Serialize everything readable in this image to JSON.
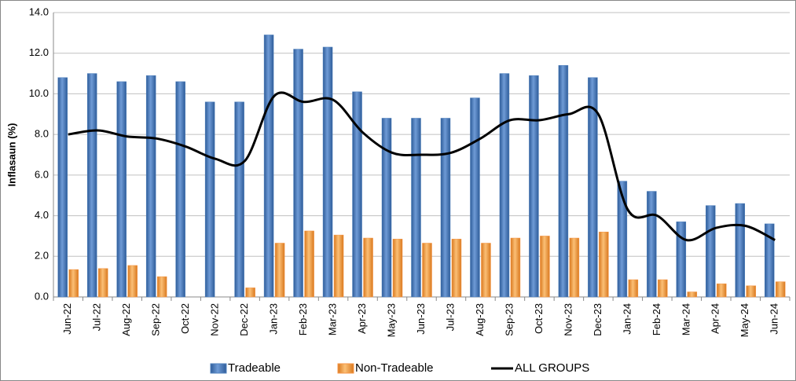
{
  "chart_data": {
    "type": "bar-line",
    "y_label": "Inflasaun (%)",
    "categories": [
      "Jun-22",
      "Jul-22",
      "Aug-22",
      "Sep-22",
      "Oct-22",
      "Nov-22",
      "Dec-22",
      "Jan-23",
      "Feb-23",
      "Mar-23",
      "Apr-23",
      "May-23",
      "Jun-23",
      "Jul-23",
      "Aug-23",
      "Sep-23",
      "Oct-23",
      "Nov-23",
      "Dec-23",
      "Jan-24",
      "Feb-24",
      "Mar-24",
      "Apr-24",
      "May-24",
      "Jun-24"
    ],
    "series": [
      {
        "name": "Tradeable",
        "type": "bar",
        "color": "#4f81bd",
        "values": [
          10.8,
          11.0,
          10.6,
          10.9,
          10.6,
          9.6,
          9.6,
          12.9,
          12.2,
          12.3,
          10.1,
          8.8,
          8.8,
          8.8,
          9.8,
          11.0,
          10.9,
          11.4,
          10.8,
          5.7,
          5.2,
          3.7,
          4.5,
          4.6,
          3.6
        ]
      },
      {
        "name": "Non-Tradeable",
        "type": "bar",
        "color": "#f79646",
        "values": [
          1.35,
          1.4,
          1.55,
          1.0,
          null,
          null,
          0.45,
          2.65,
          3.25,
          3.05,
          2.9,
          2.85,
          2.65,
          2.85,
          2.65,
          2.9,
          3.0,
          2.9,
          3.2,
          0.85,
          0.85,
          0.25,
          0.65,
          0.55,
          0.75
        ]
      },
      {
        "name": "ALL GROUPS",
        "type": "line",
        "color": "#000000",
        "values": [
          8.0,
          8.2,
          7.9,
          7.8,
          7.4,
          6.8,
          6.7,
          9.9,
          9.6,
          9.7,
          8.1,
          7.1,
          7.0,
          7.1,
          7.8,
          8.7,
          8.7,
          9.0,
          9.0,
          4.3,
          4.0,
          2.8,
          3.4,
          3.5,
          2.8
        ]
      }
    ],
    "ylim": [
      0,
      14
    ],
    "yticks": [
      {
        "value": 0,
        "label": "0.0"
      },
      {
        "value": 2,
        "label": "2.0"
      },
      {
        "value": 4,
        "label": "4.0"
      },
      {
        "value": 6,
        "label": "6.0"
      },
      {
        "value": 8,
        "label": "8.0"
      },
      {
        "value": 10,
        "label": "10.0"
      },
      {
        "value": 12,
        "label": "12.0"
      },
      {
        "value": 14,
        "label": "14.0"
      }
    ],
    "grid": true,
    "legend": "bottom"
  }
}
